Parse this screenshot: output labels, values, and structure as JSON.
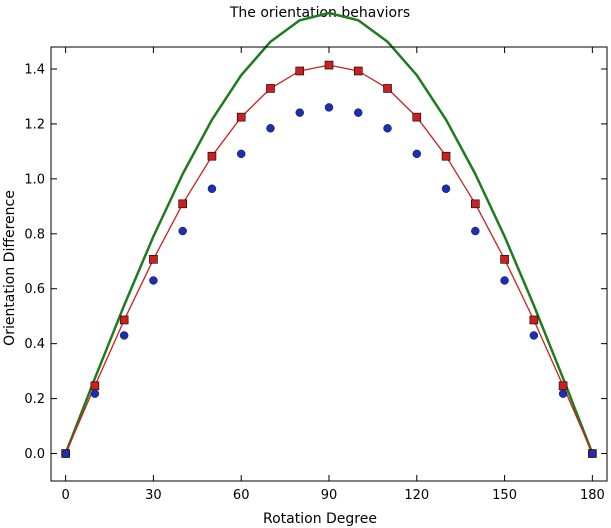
{
  "chart_data": {
    "type": "line",
    "title": "The orientation behaviors",
    "xlabel": "Rotation Degree",
    "ylabel": "Orientation Difference",
    "xlim": [
      -5,
      185
    ],
    "ylim": [
      -0.1,
      1.48
    ],
    "x_ticks": [
      0,
      30,
      60,
      90,
      120,
      150,
      180
    ],
    "y_ticks": [
      0.0,
      0.2,
      0.4,
      0.6,
      0.8,
      1.0,
      1.2,
      1.4
    ],
    "x_tick_labels": [
      "0",
      "30",
      "60",
      "90",
      "120",
      "150",
      "180"
    ],
    "y_tick_labels": [
      "0.0",
      "0.2",
      "0.4",
      "0.6",
      "0.8",
      "1.0",
      "1.2",
      "1.4"
    ],
    "grid": false,
    "legend": "none",
    "x": [
      0,
      10,
      20,
      30,
      40,
      50,
      60,
      70,
      80,
      90,
      100,
      110,
      120,
      130,
      140,
      150,
      160,
      170,
      180
    ],
    "series": [
      {
        "style": "line",
        "color": "#1e7b1e",
        "values": [
          0.0,
          0.2739,
          0.5399,
          0.7902,
          1.0175,
          1.215,
          1.3772,
          1.4992,
          1.5773,
          1.6038,
          1.5773,
          1.4992,
          1.3772,
          1.215,
          1.0175,
          0.7902,
          0.5399,
          0.2739,
          0.0
        ]
      },
      {
        "style": "line-square",
        "color": "#cc1f1f",
        "values": [
          0.0,
          0.2465,
          0.4863,
          0.7071,
          0.909,
          1.0824,
          1.2247,
          1.3291,
          1.3927,
          1.4142,
          1.3927,
          1.3291,
          1.2247,
          1.0824,
          0.909,
          0.7071,
          0.4863,
          0.2465,
          0.0
        ]
      },
      {
        "style": "marker-circle",
        "color": "#1a2fb5",
        "values": [
          0.0,
          0.2179,
          0.4299,
          0.63,
          0.81,
          0.964,
          1.091,
          1.184,
          1.241,
          1.26,
          1.241,
          1.184,
          1.091,
          0.964,
          0.81,
          0.63,
          0.4299,
          0.2179,
          0.0
        ]
      }
    ]
  }
}
